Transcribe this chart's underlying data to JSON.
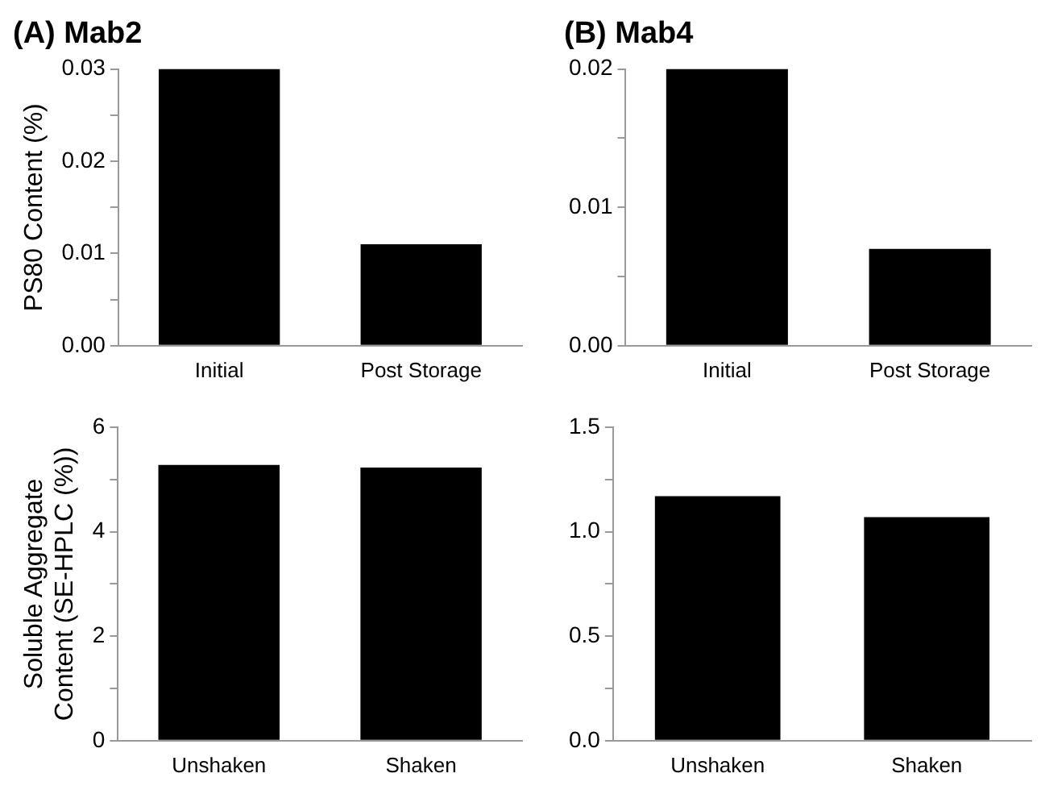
{
  "chart_data": [
    {
      "type": "bar",
      "title": "(A) Mab2",
      "ylabel": "PS80 Content (%)",
      "categories": [
        "Initial",
        "Post Storage"
      ],
      "values": [
        0.03,
        0.011
      ],
      "color": "#000000",
      "ylim": [
        0,
        0.03
      ],
      "yticks": [
        {
          "value": 0,
          "label": "0.00"
        },
        {
          "value": 0.005,
          "label": null
        },
        {
          "value": 0.01,
          "label": "0.01"
        },
        {
          "value": 0.015,
          "label": null
        },
        {
          "value": 0.02,
          "label": "0.02"
        },
        {
          "value": 0.025,
          "label": null
        },
        {
          "value": 0.03,
          "label": "0.03"
        }
      ],
      "grid": false,
      "legend": false
    },
    {
      "type": "bar",
      "title": "(B) Mab4",
      "categories": [
        "Initial",
        "Post Storage"
      ],
      "values": [
        0.02,
        0.007
      ],
      "color": "#000000",
      "ylim": [
        0,
        0.02
      ],
      "yticks": [
        {
          "value": 0,
          "label": "0.00"
        },
        {
          "value": 0.005,
          "label": null
        },
        {
          "value": 0.01,
          "label": "0.01"
        },
        {
          "value": 0.015,
          "label": null
        },
        {
          "value": 0.02,
          "label": "0.02"
        }
      ],
      "grid": false,
      "legend": false
    },
    {
      "type": "bar",
      "ylabel": "Soluble Aggregate Content (SE-HPLC (%))",
      "categories": [
        "Unshaken",
        "Shaken"
      ],
      "values": [
        5.28,
        5.23
      ],
      "color": "#000000",
      "ylim": [
        0,
        6
      ],
      "yticks": [
        0,
        {
          "value": 1,
          "label": null
        },
        2,
        {
          "value": 3,
          "label": null
        },
        4,
        {
          "value": 5,
          "label": null
        },
        6
      ],
      "grid": false,
      "legend": false
    },
    {
      "type": "bar",
      "categories": [
        "Unshaken",
        "Shaken"
      ],
      "values": [
        1.17,
        1.07
      ],
      "color": "#000000",
      "ylim": [
        0,
        1.5
      ],
      "yticks": [
        {
          "value": 0,
          "label": "0.0"
        },
        {
          "value": 0.25,
          "label": null
        },
        {
          "value": 0.5,
          "label": "0.5"
        },
        {
          "value": 0.75,
          "label": null
        },
        {
          "value": 1,
          "label": "1.0"
        },
        {
          "value": 1.25,
          "label": null
        },
        {
          "value": 1.5,
          "label": "1.5"
        }
      ],
      "grid": false,
      "legend": false
    }
  ]
}
